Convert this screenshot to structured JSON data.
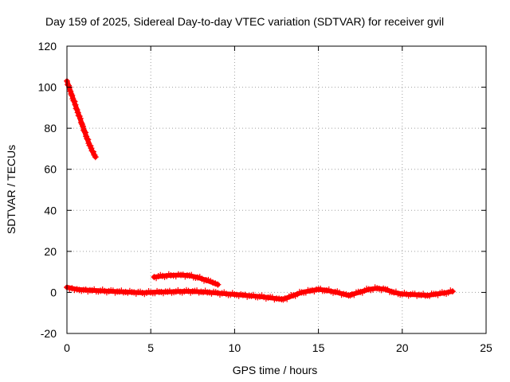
{
  "chart_data": {
    "type": "scatter",
    "title": "Day 159 of 2025, Sidereal Day-to-day VTEC variation (SDTVAR) for receiver gvil",
    "xlabel": "GPS time / hours",
    "ylabel": "SDTVAR / TECUs",
    "xlim": [
      0,
      25
    ],
    "ylim": [
      -20,
      120
    ],
    "x_ticks": [
      0,
      5,
      10,
      15,
      20,
      25
    ],
    "y_ticks": [
      -20,
      0,
      20,
      40,
      60,
      80,
      100,
      120
    ],
    "grid": true,
    "legend": "none",
    "marker": "plus",
    "series": [
      {
        "color": "#ff0000",
        "segments": [
          {
            "x": [
              0.0,
              0.3,
              0.6,
              0.9,
              1.2,
              1.5,
              1.7
            ],
            "y": [
              103,
              96,
              89,
              82,
              75,
              69,
              66
            ]
          },
          {
            "x": [
              5.2,
              5.7,
              6.2,
              6.8,
              7.3,
              7.8,
              8.3,
              8.7,
              9.0
            ],
            "y": [
              7.5,
              8.0,
              8.3,
              8.5,
              8.2,
              7.3,
              6.0,
              4.8,
              3.8
            ]
          },
          {
            "x": [
              0.0,
              0.3,
              0.6,
              1.0,
              1.5,
              2.0,
              2.5,
              3.0,
              3.5,
              4.0,
              4.5,
              5.0,
              5.5,
              6.0,
              6.5,
              7.0,
              7.5,
              8.0,
              8.5,
              9.0,
              9.5,
              10.0,
              10.5,
              11.0,
              11.5,
              12.0,
              12.5,
              12.8,
              13.0,
              13.5,
              14.0,
              14.5,
              15.0,
              15.5,
              16.0,
              16.5,
              16.8,
              17.0,
              17.5,
              18.0,
              18.5,
              19.0,
              19.5,
              20.0,
              20.5,
              21.0,
              21.5,
              22.0,
              22.5,
              23.0
            ],
            "y": [
              2.5,
              2.0,
              1.5,
              1.2,
              1.0,
              0.8,
              0.6,
              0.4,
              0.2,
              0.0,
              -0.2,
              0.0,
              0.2,
              0.3,
              0.4,
              0.5,
              0.5,
              0.3,
              0.0,
              -0.3,
              -0.7,
              -1.0,
              -1.3,
              -1.7,
              -2.0,
              -2.5,
              -3.0,
              -3.3,
              -3.0,
              -1.5,
              0.0,
              0.8,
              1.5,
              1.0,
              0.2,
              -0.8,
              -1.5,
              -1.0,
              0.2,
              1.5,
              2.0,
              1.5,
              0.0,
              -0.8,
              -1.0,
              -1.2,
              -1.5,
              -0.8,
              -0.3,
              0.5
            ]
          }
        ]
      }
    ]
  }
}
